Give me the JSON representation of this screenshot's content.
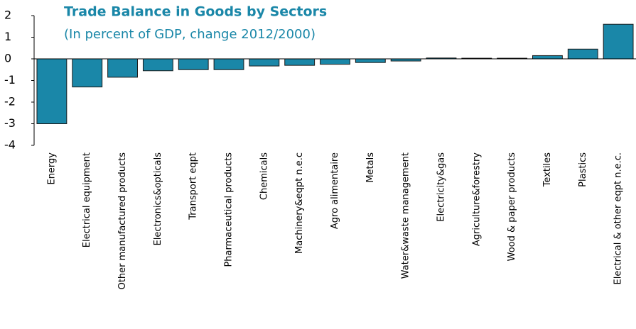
{
  "chart_data": {
    "type": "bar",
    "title": "Trade Balance in Goods by Sectors",
    "subtitle": "(In percent of GDP, change 2012/2000)",
    "categories": [
      "Energy",
      "Electrical equipment",
      "Other manufactured products",
      "Electronics&opticals",
      "Transport eqpt",
      "Pharmaceutical products",
      "Chemicals",
      "Machinery&eqpt n.e.c",
      "Agro alimentaire",
      "Metals",
      "Water&waste management",
      "Electricity&gas",
      "Agriculture&forestry",
      "Wood & paper products",
      "Textiles",
      "Plastics",
      "Electrical & other eqpt n.e.c."
    ],
    "values": [
      -3.0,
      -1.3,
      -0.85,
      -0.55,
      -0.5,
      -0.5,
      -0.33,
      -0.3,
      -0.25,
      -0.17,
      -0.1,
      0.04,
      0.03,
      0.03,
      0.15,
      0.45,
      1.6
    ],
    "color": "#1a87a8",
    "ylim": [
      -4,
      2
    ],
    "yticks": [
      -4,
      -3,
      -2,
      -1,
      0,
      1,
      2
    ],
    "grid": false
  }
}
